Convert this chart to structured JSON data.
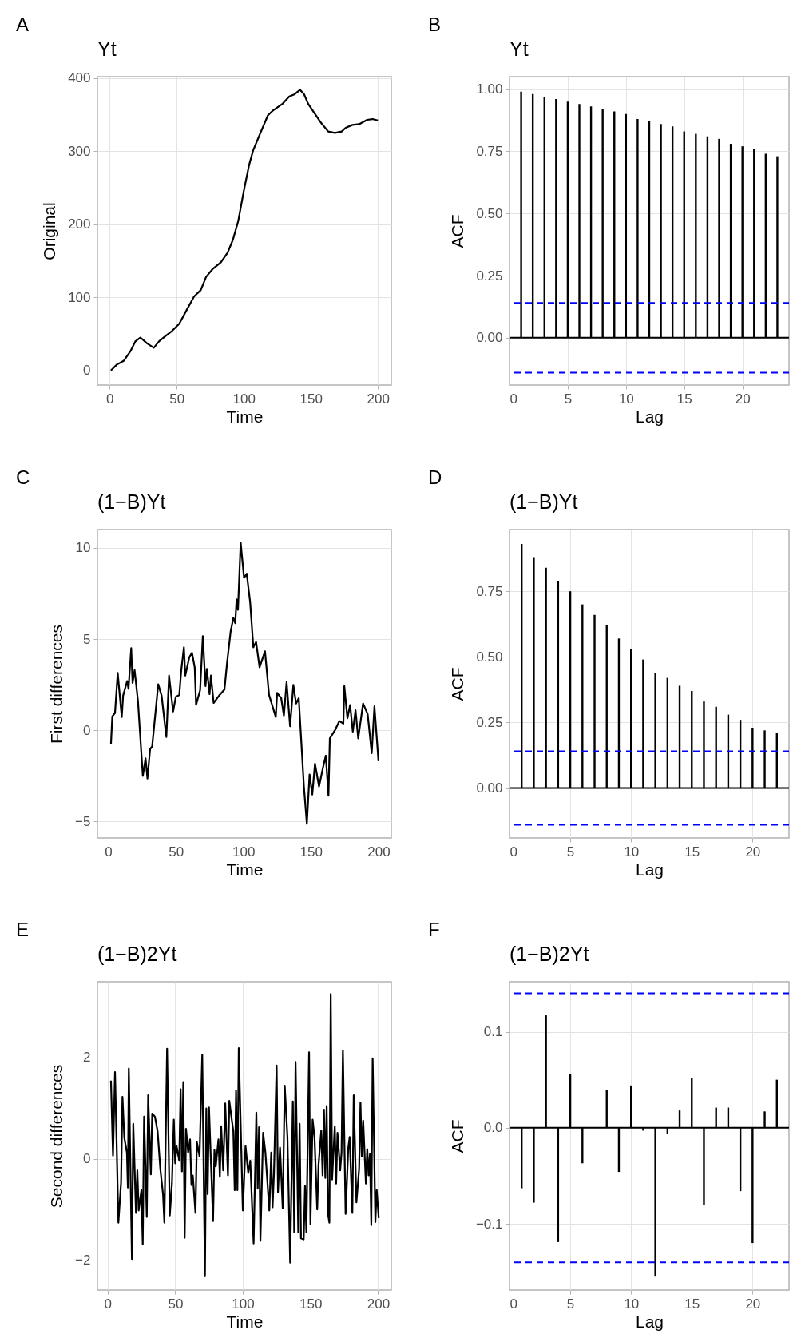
{
  "chart_data": [
    {
      "type": "line",
      "title": "Yt",
      "xlabel": "Time",
      "ylabel": "Original",
      "annotations": [
        "A"
      ],
      "color": "#000000",
      "grid": true,
      "x": [
        1,
        5.5,
        10.5,
        15.5,
        19.4,
        23,
        28,
        33,
        37,
        41,
        46,
        52,
        57,
        63,
        68,
        72,
        77,
        83,
        88,
        92,
        96,
        100,
        104,
        107,
        112,
        118,
        122,
        129,
        134,
        138,
        142,
        145,
        148,
        152,
        158,
        163,
        168,
        173,
        176,
        181,
        186,
        192,
        196,
        200
      ],
      "values": [
        0,
        8,
        13,
        26,
        40,
        45,
        37,
        31,
        40,
        46,
        53,
        64,
        81,
        101,
        110,
        128,
        139,
        148,
        161,
        179,
        205,
        245,
        281,
        301,
        323,
        349,
        356,
        365,
        375,
        378,
        384,
        378,
        365,
        354,
        338,
        327,
        325,
        327,
        332,
        336,
        337,
        343,
        344,
        342
      ],
      "xlim": [
        -9,
        210
      ],
      "ylim": [
        -20,
        402
      ],
      "xticks": [
        0,
        50,
        100,
        150,
        200
      ],
      "yticks": [
        0,
        100,
        200,
        300,
        400
      ]
    },
    {
      "type": "bar",
      "title": "Yt",
      "xlabel": "Lag",
      "ylabel": "ACF",
      "annotations": [
        "B"
      ],
      "color": "#000000",
      "grid": true,
      "x": [
        1,
        2,
        3,
        4,
        5,
        6,
        7,
        8,
        9,
        10,
        11,
        12,
        13,
        14,
        15,
        16,
        17,
        18,
        19,
        20,
        21,
        22,
        23
      ],
      "values": [
        0.99,
        0.98,
        0.97,
        0.96,
        0.95,
        0.94,
        0.93,
        0.92,
        0.91,
        0.9,
        0.88,
        0.87,
        0.86,
        0.85,
        0.83,
        0.82,
        0.81,
        0.8,
        0.78,
        0.77,
        0.76,
        0.74,
        0.73
      ],
      "xlim": [
        0,
        24
      ],
      "ylim": [
        -0.19,
        1.05
      ],
      "xticks": [
        0,
        5,
        10,
        15,
        20
      ],
      "yticks": [
        {
          "value": 0,
          "label": "0.00"
        },
        0.25,
        {
          "value": 0.5,
          "label": "0.50"
        },
        0.75,
        {
          "value": 1,
          "label": "1.00"
        }
      ],
      "ref_lines": [
        {
          "axis": "y",
          "value": 0,
          "color": "#000000",
          "line_style": "solid"
        },
        {
          "axis": "y",
          "value": 0.14,
          "color": "#0000ff",
          "line_style": "dashed"
        },
        {
          "axis": "y",
          "value": -0.14,
          "color": "#0000ff",
          "line_style": "dashed"
        }
      ]
    },
    {
      "type": "line",
      "title": "(1−B)Yt",
      "xlabel": "Time",
      "ylabel": "First differences",
      "annotations": [
        "C"
      ],
      "color": "#000000",
      "grid": true,
      "x": [
        2,
        3,
        5,
        7,
        10,
        11,
        14,
        15,
        17,
        18,
        19.5,
        22,
        25.6,
        27.6,
        29,
        31,
        32.5,
        37,
        39.5,
        43,
        45,
        48,
        50,
        52.6,
        54,
        56,
        57,
        60,
        62,
        64,
        65,
        68,
        70,
        72,
        73,
        75,
        76,
        78,
        82,
        86,
        88,
        90.6,
        92.6,
        94,
        95,
        96,
        98,
        100.5,
        102.5,
        105,
        107.4,
        109.4,
        112,
        116,
        119,
        124,
        125,
        128,
        130,
        132,
        134.6,
        137,
        139,
        141,
        144.8,
        147,
        149,
        151,
        153,
        156,
        159,
        161,
        163,
        164,
        168,
        171,
        174,
        174.7,
        177,
        179,
        181,
        183,
        185,
        188.6,
        192,
        195,
        197,
        200
      ],
      "values": [
        -0.78,
        0.76,
        0.95,
        3.15,
        0.73,
        1.9,
        2.7,
        2.27,
        4.5,
        2.6,
        3.3,
        1.6,
        -2.5,
        -1.54,
        -2.64,
        -1.03,
        -0.88,
        2.52,
        1.9,
        -0.37,
        3.0,
        1.03,
        1.83,
        1.94,
        3.26,
        4.55,
        3.0,
        4.0,
        4.25,
        3.45,
        1.39,
        2.2,
        5.16,
        2.42,
        3.37,
        1.98,
        3.0,
        1.5,
        1.9,
        2.23,
        3.74,
        5.42,
        6.16,
        5.87,
        7.18,
        6.6,
        10.29,
        8.36,
        8.58,
        7.04,
        4.55,
        4.84,
        3.45,
        4.33,
        1.94,
        0.73,
        2.05,
        1.76,
        0.81,
        2.64,
        0.22,
        2.49,
        1.47,
        1.76,
        -3.08,
        -5.13,
        -2.42,
        -3.52,
        -1.83,
        -3.08,
        -2.02,
        -1.39,
        -3.59,
        -0.44,
        0.03,
        0.51,
        0.37,
        2.42,
        0.66,
        1.39,
        -0.07,
        1.1,
        -0.44,
        1.47,
        0.88,
        -1.25,
        1.32,
        -1.69
      ],
      "xlim": [
        -8,
        209.5
      ],
      "ylim": [
        -5.9,
        11
      ],
      "xticks": [
        0,
        50,
        100,
        150,
        200
      ],
      "yticks": [
        {
          "value": -5,
          "label": "−5"
        },
        0,
        5,
        10
      ]
    },
    {
      "type": "bar",
      "title": "(1−B)Yt",
      "xlabel": "Lag",
      "ylabel": "ACF",
      "annotations": [
        "D"
      ],
      "color": "#000000",
      "grid": true,
      "x": [
        1,
        2,
        3,
        4,
        5,
        6,
        7,
        8,
        9,
        10,
        11,
        12,
        13,
        14,
        15,
        16,
        17,
        18,
        19,
        20,
        21,
        22
      ],
      "values": [
        0.93,
        0.88,
        0.84,
        0.79,
        0.75,
        0.7,
        0.66,
        0.62,
        0.57,
        0.53,
        0.49,
        0.44,
        0.42,
        0.39,
        0.37,
        0.33,
        0.31,
        0.28,
        0.26,
        0.23,
        0.22,
        0.21
      ],
      "xlim": [
        0,
        23
      ],
      "ylim": [
        -0.19,
        0.985
      ],
      "xticks": [
        0,
        5,
        10,
        15,
        20
      ],
      "yticks": [
        {
          "value": 0,
          "label": "0.00"
        },
        0.25,
        {
          "value": 0.5,
          "label": "0.50"
        },
        0.75
      ],
      "ref_lines": [
        {
          "axis": "y",
          "value": 0,
          "color": "#000000",
          "line_style": "solid"
        },
        {
          "axis": "y",
          "value": 0.14,
          "color": "#0000ff",
          "line_style": "dashed"
        },
        {
          "axis": "y",
          "value": -0.14,
          "color": "#0000ff",
          "line_style": "dashed"
        }
      ]
    },
    {
      "type": "line",
      "title": "(1−B)2Yt",
      "xlabel": "Time",
      "ylabel": "Second differences",
      "annotations": [
        "E"
      ],
      "color": "#000000",
      "grid": true,
      "x": [
        2.5,
        4,
        5.5,
        8,
        10,
        11,
        12.4,
        14.3,
        15,
        15.7,
        18,
        19,
        21,
        22,
        23,
        25,
        26,
        27,
        29,
        30,
        32,
        33,
        35,
        37,
        39,
        41,
        42,
        44,
        46,
        47.6,
        49,
        50,
        51,
        53,
        54,
        55,
        56,
        57,
        58,
        59.6,
        61,
        62,
        63,
        65,
        66,
        68,
        70,
        72,
        73,
        74,
        75,
        78,
        79,
        80,
        82,
        83,
        84,
        85.5,
        87,
        89,
        90,
        93,
        94,
        95,
        96,
        97,
        100,
        102,
        104,
        105.5,
        108,
        110,
        111,
        112,
        113,
        115,
        116.7,
        119.6,
        121,
        122,
        123,
        125,
        126,
        127.5,
        129.5,
        131,
        133,
        135,
        137,
        138,
        139,
        141,
        142,
        143,
        145,
        146,
        147,
        149,
        150,
        151.6,
        153,
        155,
        156,
        158,
        159,
        160,
        161,
        162,
        163,
        164,
        165,
        166,
        168,
        169,
        170,
        172,
        173,
        174,
        176,
        178,
        179,
        181,
        182,
        184,
        186,
        187,
        188,
        189,
        191,
        192,
        193,
        194,
        195,
        196,
        198,
        199,
        200.5
      ],
      "values": [
        1.54,
        0.06,
        1.71,
        -1.26,
        -0.46,
        1.22,
        0.41,
        0.12,
        -0.57,
        1.78,
        -1.98,
        0.69,
        -1.07,
        -0.23,
        -1.02,
        -0.62,
        -1.69,
        0.83,
        -1.15,
        1.25,
        -0.31,
        0.89,
        0.83,
        0.54,
        -0.2,
        -0.7,
        -1.26,
        2.17,
        -1.12,
        -0.49,
        0.77,
        -0.09,
        0.25,
        -0.04,
        1.37,
        -0.25,
        1.51,
        -1.56,
        0.59,
        0.12,
        0.38,
        -0.52,
        -0.33,
        -1.07,
        0.33,
        0.05,
        2.05,
        -2.32,
        0.99,
        -0.7,
        1.01,
        -1.23,
        0.17,
        -0.15,
        0.38,
        -0.36,
        0.64,
        -0.23,
        1.09,
        -0.33,
        1.14,
        0.54,
        -0.62,
        1.35,
        -0.62,
        2.18,
        -1.02,
        0.25,
        -0.28,
        -0.04,
        -1.67,
        0.91,
        -0.59,
        0.62,
        -1.62,
        0.51,
        0.12,
        -1.02,
        0.12,
        -0.96,
        -0.31,
        1.84,
        -0.66,
        0.22,
        -0.98,
        1.44,
        0.43,
        -2.05,
        1.13,
        -1.45,
        1.91,
        -1.45,
        0.69,
        -1.57,
        -1.59,
        -0.54,
        -1.45,
        2.1,
        -1.29,
        0.77,
        0.43,
        -1.0,
        -0.12,
        0.56,
        -0.33,
        0.97,
        -0.38,
        1.04,
        -1.09,
        -1.26,
        3.25,
        -0.41,
        0.64,
        -0.49,
        0.51,
        -0.23,
        0.12,
        2.13,
        -1.09,
        0.22,
        0.43,
        -1.07,
        1.25,
        -0.86,
        -0.2,
        1.11,
        0.04,
        0.75,
        -0.49,
        0.19,
        -0.33,
        0.09,
        -1.31,
        1.98,
        -1.25,
        -0.62,
        -1.17
      ],
      "xlim": [
        -7.5,
        209.8
      ],
      "ylim": [
        -2.59,
        3.49
      ],
      "xticks": [
        0,
        50,
        100,
        150,
        200
      ],
      "yticks": [
        {
          "value": -2,
          "label": "−2"
        },
        0,
        2
      ]
    },
    {
      "type": "bar",
      "title": "(1−B)2Yt",
      "xlabel": "Lag",
      "ylabel": "ACF",
      "annotations": [
        "F"
      ],
      "color": "#000000",
      "grid": true,
      "x": [
        1,
        2,
        3,
        4,
        5,
        6,
        7,
        8,
        9,
        10,
        11,
        12,
        13,
        14,
        15,
        16,
        17,
        18,
        19,
        20,
        21,
        22
      ],
      "values": [
        -0.063,
        -0.078,
        0.117,
        -0.119,
        0.056,
        -0.037,
        null,
        0.039,
        -0.046,
        0.044,
        -0.003,
        -0.155,
        -0.006,
        0.018,
        0.052,
        -0.08,
        0.021,
        0.021,
        -0.066,
        -0.12,
        0.017,
        0.05
      ],
      "xlim": [
        0,
        23
      ],
      "ylim": [
        -0.169,
        0.152
      ],
      "xticks": [
        0,
        5,
        10,
        15,
        20
      ],
      "yticks": [
        {
          "value": -0.1,
          "label": "−0.1"
        },
        {
          "value": 0,
          "label": "0.0"
        },
        0.1
      ],
      "ref_lines": [
        {
          "axis": "y",
          "value": 0,
          "color": "#000000",
          "line_style": "solid"
        },
        {
          "axis": "y",
          "value": 0.14,
          "color": "#0000ff",
          "line_style": "dashed"
        },
        {
          "axis": "y",
          "value": -0.14,
          "color": "#0000ff",
          "line_style": "dashed"
        }
      ]
    }
  ]
}
